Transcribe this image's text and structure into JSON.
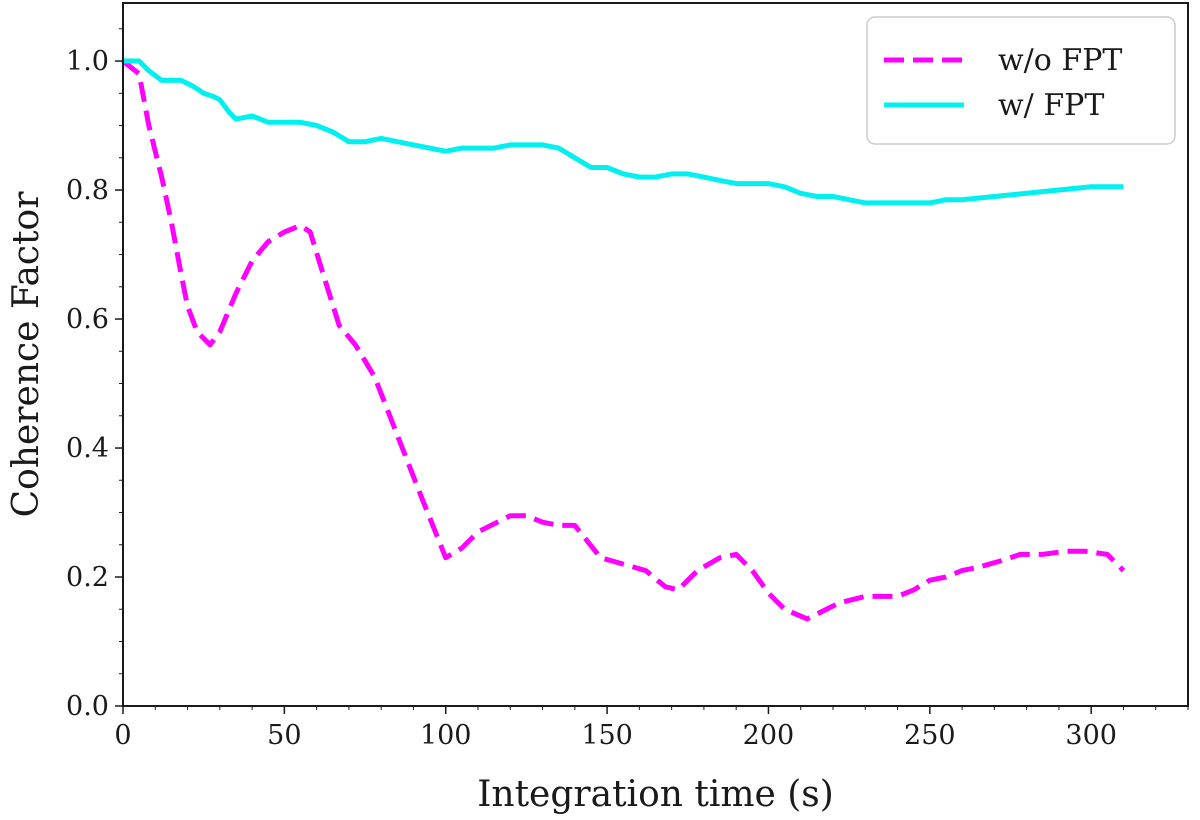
{
  "chart_data": {
    "type": "line",
    "xlabel": "Integration time (s)",
    "ylabel": "Coherence Factor",
    "xlim": [
      0,
      330
    ],
    "ylim": [
      0,
      1.09
    ],
    "xticks": [
      0,
      50,
      100,
      150,
      200,
      250,
      300
    ],
    "xtick_labels": [
      "0",
      "50",
      "100",
      "150",
      "200",
      "250",
      "300"
    ],
    "yticks": [
      0.0,
      0.2,
      0.4,
      0.6,
      0.8,
      1.0
    ],
    "ytick_labels": [
      "0.0",
      "0.2",
      "0.4",
      "0.6",
      "0.8",
      "1.0"
    ],
    "grid": false,
    "legend_position": "top-right",
    "series": [
      {
        "name": "w/o FPT",
        "color": "#ff00ff",
        "style": "dashed",
        "x": [
          0,
          5,
          8,
          12,
          15,
          18,
          20,
          23,
          27,
          30,
          35,
          40,
          45,
          50,
          55,
          58,
          62,
          67,
          72,
          78,
          85,
          92,
          100,
          105,
          110,
          120,
          125,
          130,
          135,
          140,
          148,
          155,
          162,
          168,
          172,
          178,
          185,
          190,
          195,
          200,
          205,
          212,
          218,
          222,
          230,
          240,
          245,
          250,
          255,
          260,
          265,
          272,
          278,
          285,
          292,
          298,
          305,
          310
        ],
        "y": [
          1.0,
          0.98,
          0.9,
          0.82,
          0.75,
          0.67,
          0.62,
          0.58,
          0.56,
          0.58,
          0.64,
          0.69,
          0.72,
          0.735,
          0.745,
          0.735,
          0.67,
          0.59,
          0.56,
          0.51,
          0.42,
          0.33,
          0.23,
          0.245,
          0.27,
          0.295,
          0.295,
          0.285,
          0.28,
          0.28,
          0.23,
          0.22,
          0.21,
          0.185,
          0.18,
          0.21,
          0.23,
          0.235,
          0.21,
          0.175,
          0.15,
          0.135,
          0.15,
          0.16,
          0.17,
          0.17,
          0.18,
          0.195,
          0.2,
          0.21,
          0.215,
          0.225,
          0.235,
          0.235,
          0.24,
          0.24,
          0.235,
          0.21
        ]
      },
      {
        "name": "w/ FPT",
        "color": "#00f0f0",
        "style": "solid",
        "x": [
          0,
          5,
          8,
          12,
          18,
          22,
          25,
          28,
          30,
          33,
          35,
          40,
          45,
          50,
          55,
          60,
          65,
          70,
          75,
          80,
          85,
          90,
          95,
          100,
          105,
          110,
          115,
          120,
          125,
          130,
          135,
          140,
          145,
          150,
          155,
          160,
          165,
          170,
          175,
          180,
          185,
          190,
          195,
          200,
          205,
          210,
          215,
          220,
          225,
          230,
          235,
          240,
          245,
          250,
          255,
          260,
          270,
          280,
          290,
          300,
          310
        ],
        "y": [
          1.0,
          1.0,
          0.985,
          0.97,
          0.97,
          0.96,
          0.95,
          0.945,
          0.94,
          0.92,
          0.91,
          0.915,
          0.905,
          0.905,
          0.905,
          0.9,
          0.89,
          0.875,
          0.875,
          0.88,
          0.875,
          0.87,
          0.865,
          0.86,
          0.865,
          0.865,
          0.865,
          0.87,
          0.87,
          0.87,
          0.865,
          0.85,
          0.835,
          0.835,
          0.825,
          0.82,
          0.82,
          0.825,
          0.825,
          0.82,
          0.815,
          0.81,
          0.81,
          0.81,
          0.805,
          0.795,
          0.79,
          0.79,
          0.785,
          0.78,
          0.78,
          0.78,
          0.78,
          0.78,
          0.785,
          0.785,
          0.79,
          0.795,
          0.8,
          0.805,
          0.805
        ]
      }
    ]
  }
}
